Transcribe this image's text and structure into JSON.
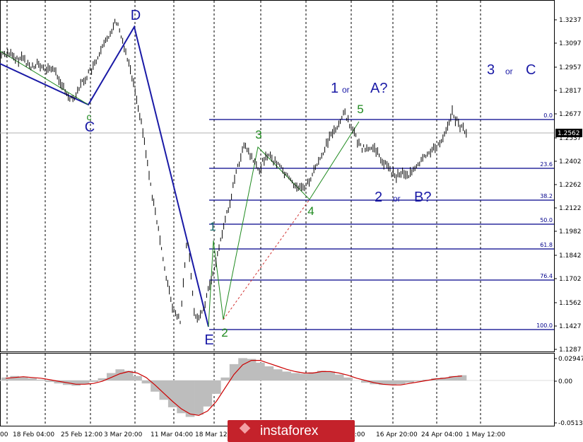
{
  "chart_data": {
    "type": "line",
    "instrument_series": "price",
    "price_axis": {
      "ticks": [
        "1.3237",
        "1.3097",
        "1.2957",
        "1.2817",
        "1.2677",
        "1.2537",
        "1.2402",
        "1.2262",
        "1.2122",
        "1.1982",
        "1.1842",
        "1.1702",
        "1.1562",
        "1.1427",
        "1.1287"
      ],
      "current_price": "1.2562",
      "range": [
        1.1287,
        1.3237
      ]
    },
    "time_axis": {
      "ticks": [
        "00",
        "18 Feb 04:00",
        "25 Feb 12:00",
        "3 Mar 20:00",
        "11 Mar 04:00",
        "18 Mar 12:00",
        "16 Apr 20:00",
        "24 Apr 04:00",
        "1 May 12:00"
      ]
    },
    "price_path": [
      1.3025,
      1.304,
      1.299,
      1.301,
      1.295,
      1.2975,
      1.293,
      1.295,
      1.289,
      1.279,
      1.276,
      1.284,
      1.29,
      1.296,
      1.305,
      1.314,
      1.3237,
      1.31,
      1.295,
      1.275,
      1.25,
      1.22,
      1.195,
      1.17,
      1.148,
      1.142,
      1.193,
      1.145,
      1.146,
      1.162,
      1.178,
      1.198,
      1.215,
      1.235,
      1.248,
      1.24,
      1.232,
      1.243,
      1.239,
      1.235,
      1.229,
      1.224,
      1.222,
      1.226,
      1.235,
      1.244,
      1.254,
      1.26,
      1.2677,
      1.258,
      1.248,
      1.245,
      1.247,
      1.24,
      1.235,
      1.229,
      1.232,
      1.23,
      1.234,
      1.24,
      1.245,
      1.247,
      1.256,
      1.2677,
      1.26,
      1.2562
    ],
    "fibonacci_levels": [
      {
        "label": "0.0",
        "price": 1.2677
      },
      {
        "label": "23.6",
        "price": 1.2402
      },
      {
        "label": "38.2",
        "price": 1.2207
      },
      {
        "label": "50.0",
        "price": 1.2057
      },
      {
        "label": "61.8",
        "price": 1.1887
      },
      {
        "label": "76.4",
        "price": 1.1722
      },
      {
        "label": "100.0",
        "price": 1.1427
      }
    ],
    "wave_labels": [
      {
        "text": "D",
        "color": "blue",
        "price": 1.33
      },
      {
        "text": "c",
        "color": "green",
        "price": 1.271
      },
      {
        "text": "C",
        "color": "blue",
        "price": 1.262
      },
      {
        "text": "E",
        "color": "blue",
        "price": 1.135
      },
      {
        "text": "1",
        "color": "blue-green",
        "price": 1.203
      },
      {
        "text": "2",
        "color": "green",
        "price": 1.139
      },
      {
        "text": "3",
        "color": "green",
        "price": 1.256
      },
      {
        "text": "4",
        "color": "green",
        "price": 1.2125
      },
      {
        "text": "5",
        "color": "green",
        "price": 1.275
      }
    ],
    "scenario_labels": [
      {
        "parts": [
          "1",
          "or",
          "A?"
        ]
      },
      {
        "parts": [
          "2",
          "or",
          "B?"
        ]
      },
      {
        "parts": [
          "3",
          "or",
          "C"
        ]
      }
    ],
    "oscillator": {
      "axis_ticks": [
        "0.02947",
        "0.00",
        "-0.05133"
      ],
      "range": [
        -0.05133,
        0.02947
      ],
      "histogram": [
        0.004,
        0.006,
        0.005,
        0.003,
        0.001,
        -0.002,
        -0.004,
        -0.006,
        -0.007,
        -0.005,
        -0.002,
        0.003,
        0.01,
        0.015,
        0.013,
        0.006,
        -0.004,
        -0.015,
        -0.026,
        -0.036,
        -0.044,
        -0.049,
        -0.046,
        -0.035,
        -0.018,
        0.004,
        0.022,
        0.03,
        0.029,
        0.024,
        0.019,
        0.015,
        0.012,
        0.01,
        0.009,
        0.011,
        0.013,
        0.012,
        0.008,
        0.004,
        0.0,
        -0.003,
        -0.005,
        -0.006,
        -0.006,
        -0.005,
        -0.003,
        -0.001,
        0.001,
        0.003,
        0.004,
        0.006,
        0.007
      ],
      "signal": [
        0.003,
        0.004,
        0.005,
        0.004,
        0.003,
        0.001,
        -0.001,
        -0.003,
        -0.005,
        -0.005,
        -0.004,
        -0.001,
        0.004,
        0.009,
        0.012,
        0.01,
        0.004,
        -0.006,
        -0.017,
        -0.028,
        -0.038,
        -0.045,
        -0.047,
        -0.041,
        -0.028,
        -0.01,
        0.008,
        0.021,
        0.027,
        0.027,
        0.023,
        0.019,
        0.015,
        0.012,
        0.01,
        0.01,
        0.012,
        0.012,
        0.01,
        0.007,
        0.003,
        0.0,
        -0.003,
        -0.005,
        -0.006,
        -0.006,
        -0.004,
        -0.002,
        0.0,
        0.002,
        0.003,
        0.005,
        0.006
      ]
    },
    "grid": "vertical-dashed",
    "legend": "none"
  },
  "branding": {
    "logo_text": "instaforex"
  }
}
